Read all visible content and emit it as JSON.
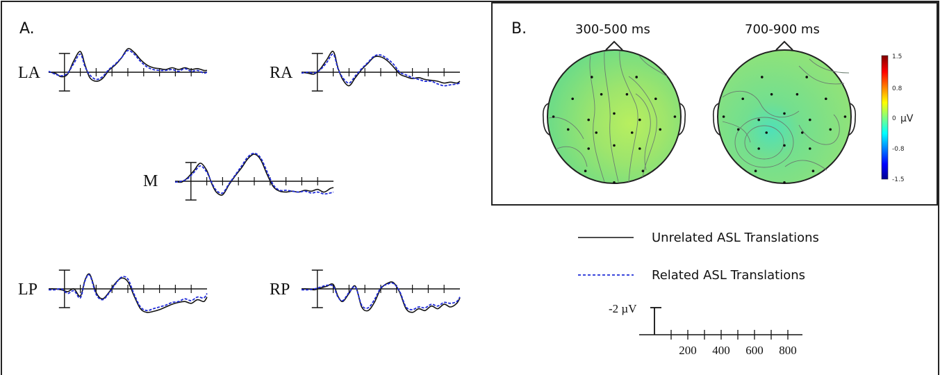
{
  "panels": {
    "a_label": "A.",
    "b_label": "B."
  },
  "colors": {
    "unrelated": "#111111",
    "related": "#1f2bd8",
    "scalp_fill": "#86e07a",
    "frame": "#222222"
  },
  "chart_data": [
    {
      "type": "line",
      "title": "",
      "sites": [
        "LA",
        "RA",
        "M",
        "LP",
        "RP"
      ],
      "legend": [
        {
          "name": "Unrelated ASL Translations",
          "style": "solid",
          "color": "#111111"
        },
        {
          "name": "Related ASL Translations",
          "style": "dashed",
          "color": "#1f2bd8"
        }
      ],
      "scale_bar": {
        "amplitude_label": "-2 µV",
        "amplitude": -2,
        "time_ticks": [
          200,
          400,
          600,
          800
        ],
        "time_tick_step_ms": 100,
        "time_range_ms": [
          -100,
          900
        ]
      },
      "y_polarity": "negative up",
      "series": [
        {
          "site": "LA",
          "unrelated": [
            [
              -100,
              0
            ],
            [
              -60,
              0.1
            ],
            [
              -20,
              0.5
            ],
            [
              20,
              0.2
            ],
            [
              60,
              -1.3
            ],
            [
              100,
              -2.3
            ],
            [
              130,
              -0.8
            ],
            [
              160,
              0.6
            ],
            [
              200,
              1.0
            ],
            [
              240,
              0.7
            ],
            [
              280,
              -0.2
            ],
            [
              320,
              -0.8
            ],
            [
              360,
              -1.6
            ],
            [
              400,
              -2.6
            ],
            [
              440,
              -2.2
            ],
            [
              480,
              -1.4
            ],
            [
              520,
              -0.8
            ],
            [
              560,
              -0.5
            ],
            [
              600,
              -0.4
            ],
            [
              640,
              -0.3
            ],
            [
              680,
              -0.5
            ],
            [
              720,
              -0.3
            ],
            [
              760,
              -0.5
            ],
            [
              800,
              -0.3
            ],
            [
              840,
              -0.4
            ],
            [
              880,
              -0.2
            ],
            [
              900,
              -0.2
            ]
          ],
          "related": [
            [
              -100,
              -0.1
            ],
            [
              -60,
              0.2
            ],
            [
              -20,
              0.4
            ],
            [
              20,
              0.1
            ],
            [
              60,
              -1.0
            ],
            [
              100,
              -2.0
            ],
            [
              130,
              -0.6
            ],
            [
              160,
              0.3
            ],
            [
              200,
              0.8
            ],
            [
              240,
              0.5
            ],
            [
              280,
              -0.3
            ],
            [
              320,
              -0.9
            ],
            [
              360,
              -1.6
            ],
            [
              400,
              -2.4
            ],
            [
              440,
              -2.0
            ],
            [
              480,
              -1.2
            ],
            [
              520,
              -0.6
            ],
            [
              560,
              -0.3
            ],
            [
              600,
              -0.2
            ],
            [
              640,
              -0.2
            ],
            [
              680,
              -0.3
            ],
            [
              720,
              -0.1
            ],
            [
              760,
              -0.4
            ],
            [
              800,
              -0.1
            ],
            [
              840,
              -0.2
            ],
            [
              880,
              0.1
            ],
            [
              900,
              0.0
            ]
          ]
        },
        {
          "site": "RA",
          "unrelated": [
            [
              -100,
              0
            ],
            [
              -60,
              0.1
            ],
            [
              -20,
              0.2
            ],
            [
              20,
              -0.4
            ],
            [
              60,
              -1.4
            ],
            [
              100,
              -2.3
            ],
            [
              130,
              -0.5
            ],
            [
              160,
              0.8
            ],
            [
              200,
              1.5
            ],
            [
              240,
              0.6
            ],
            [
              280,
              -0.3
            ],
            [
              320,
              -1.0
            ],
            [
              360,
              -1.7
            ],
            [
              400,
              -1.7
            ],
            [
              440,
              -1.3
            ],
            [
              480,
              -0.6
            ],
            [
              520,
              0.2
            ],
            [
              560,
              0.5
            ],
            [
              600,
              0.7
            ],
            [
              640,
              0.6
            ],
            [
              680,
              0.8
            ],
            [
              720,
              0.9
            ],
            [
              760,
              1.0
            ],
            [
              800,
              1.2
            ],
            [
              840,
              1.1
            ],
            [
              880,
              1.2
            ],
            [
              900,
              1.0
            ]
          ],
          "related": [
            [
              -100,
              0.1
            ],
            [
              -60,
              0.0
            ],
            [
              -20,
              0.1
            ],
            [
              20,
              -0.3
            ],
            [
              60,
              -1.1
            ],
            [
              100,
              -2.0
            ],
            [
              130,
              -0.4
            ],
            [
              160,
              0.6
            ],
            [
              200,
              1.2
            ],
            [
              240,
              0.4
            ],
            [
              280,
              -0.4
            ],
            [
              320,
              -1.1
            ],
            [
              360,
              -1.8
            ],
            [
              400,
              -1.9
            ],
            [
              440,
              -1.5
            ],
            [
              480,
              -0.9
            ],
            [
              520,
              0.0
            ],
            [
              560,
              0.3
            ],
            [
              600,
              0.6
            ],
            [
              640,
              0.8
            ],
            [
              680,
              1.0
            ],
            [
              720,
              1.0
            ],
            [
              760,
              1.3
            ],
            [
              800,
              1.5
            ],
            [
              840,
              1.4
            ],
            [
              880,
              1.3
            ],
            [
              900,
              1.2
            ]
          ]
        },
        {
          "site": "M",
          "unrelated": [
            [
              -100,
              0
            ],
            [
              -60,
              0.1
            ],
            [
              -20,
              -0.4
            ],
            [
              20,
              -1.2
            ],
            [
              60,
              -2.0
            ],
            [
              100,
              -1.2
            ],
            [
              130,
              0.2
            ],
            [
              160,
              1.2
            ],
            [
              200,
              1.5
            ],
            [
              240,
              0.4
            ],
            [
              280,
              -0.6
            ],
            [
              320,
              -1.5
            ],
            [
              360,
              -2.5
            ],
            [
              400,
              -3.0
            ],
            [
              440,
              -2.4
            ],
            [
              480,
              -0.8
            ],
            [
              520,
              0.6
            ],
            [
              560,
              1.1
            ],
            [
              600,
              1.2
            ],
            [
              640,
              1.1
            ],
            [
              680,
              1.2
            ],
            [
              720,
              1.0
            ],
            [
              760,
              1.1
            ],
            [
              800,
              0.9
            ],
            [
              840,
              1.2
            ],
            [
              880,
              0.8
            ],
            [
              900,
              0.7
            ]
          ],
          "related": [
            [
              -100,
              0.1
            ],
            [
              -60,
              0.0
            ],
            [
              -20,
              -0.3
            ],
            [
              20,
              -1.0
            ],
            [
              60,
              -1.7
            ],
            [
              100,
              -1.0
            ],
            [
              130,
              0.1
            ],
            [
              160,
              1.0
            ],
            [
              200,
              1.3
            ],
            [
              240,
              0.3
            ],
            [
              280,
              -0.7
            ],
            [
              320,
              -1.7
            ],
            [
              360,
              -2.7
            ],
            [
              400,
              -3.1
            ],
            [
              440,
              -2.6
            ],
            [
              480,
              -1.1
            ],
            [
              520,
              0.4
            ],
            [
              560,
              1.0
            ],
            [
              600,
              1.0
            ],
            [
              640,
              1.1
            ],
            [
              680,
              1.2
            ],
            [
              720,
              1.1
            ],
            [
              760,
              1.3
            ],
            [
              800,
              1.2
            ],
            [
              840,
              1.4
            ],
            [
              880,
              1.3
            ],
            [
              900,
              1.2
            ]
          ]
        },
        {
          "site": "LP",
          "unrelated": [
            [
              -100,
              0
            ],
            [
              -60,
              0.0
            ],
            [
              -20,
              0.1
            ],
            [
              20,
              0.3
            ],
            [
              60,
              0.0
            ],
            [
              100,
              0.8
            ],
            [
              130,
              -1.0
            ],
            [
              160,
              -1.6
            ],
            [
              200,
              0.4
            ],
            [
              240,
              1.1
            ],
            [
              280,
              0.4
            ],
            [
              320,
              -0.6
            ],
            [
              360,
              -1.2
            ],
            [
              400,
              -0.8
            ],
            [
              440,
              0.8
            ],
            [
              480,
              2.2
            ],
            [
              520,
              2.6
            ],
            [
              560,
              2.5
            ],
            [
              600,
              2.3
            ],
            [
              640,
              2.0
            ],
            [
              680,
              1.7
            ],
            [
              720,
              1.5
            ],
            [
              760,
              1.4
            ],
            [
              800,
              1.6
            ],
            [
              840,
              1.2
            ],
            [
              880,
              1.4
            ],
            [
              900,
              0.9
            ]
          ],
          "related": [
            [
              -100,
              0.1
            ],
            [
              -60,
              0.1
            ],
            [
              -20,
              0.0
            ],
            [
              20,
              0.5
            ],
            [
              60,
              0.2
            ],
            [
              100,
              1.0
            ],
            [
              130,
              -0.9
            ],
            [
              160,
              -1.5
            ],
            [
              200,
              0.6
            ],
            [
              240,
              1.2
            ],
            [
              280,
              0.5
            ],
            [
              320,
              -0.5
            ],
            [
              360,
              -1.3
            ],
            [
              400,
              -1.1
            ],
            [
              440,
              0.6
            ],
            [
              480,
              2.0
            ],
            [
              520,
              2.4
            ],
            [
              560,
              2.2
            ],
            [
              600,
              2.0
            ],
            [
              640,
              1.8
            ],
            [
              680,
              1.5
            ],
            [
              720,
              1.4
            ],
            [
              760,
              1.1
            ],
            [
              800,
              1.3
            ],
            [
              840,
              0.9
            ],
            [
              880,
              1.0
            ],
            [
              900,
              0.5
            ]
          ]
        },
        {
          "site": "RP",
          "unrelated": [
            [
              -100,
              0
            ],
            [
              -60,
              0.0
            ],
            [
              -20,
              0.1
            ],
            [
              20,
              -0.1
            ],
            [
              60,
              -0.3
            ],
            [
              100,
              -0.5
            ],
            [
              130,
              0.8
            ],
            [
              160,
              1.4
            ],
            [
              200,
              0.5
            ],
            [
              240,
              -0.3
            ],
            [
              280,
              2.0
            ],
            [
              320,
              2.4
            ],
            [
              360,
              1.5
            ],
            [
              400,
              0.0
            ],
            [
              440,
              -0.6
            ],
            [
              480,
              -0.7
            ],
            [
              520,
              0.4
            ],
            [
              560,
              2.2
            ],
            [
              600,
              2.6
            ],
            [
              640,
              2.2
            ],
            [
              680,
              2.4
            ],
            [
              720,
              1.9
            ],
            [
              760,
              2.2
            ],
            [
              800,
              1.7
            ],
            [
              840,
              2.0
            ],
            [
              880,
              1.6
            ],
            [
              900,
              1.0
            ]
          ],
          "related": [
            [
              -100,
              0.1
            ],
            [
              -60,
              0.1
            ],
            [
              -20,
              0.0
            ],
            [
              20,
              -0.2
            ],
            [
              60,
              -0.4
            ],
            [
              100,
              -0.3
            ],
            [
              130,
              0.9
            ],
            [
              160,
              1.3
            ],
            [
              200,
              0.4
            ],
            [
              240,
              -0.2
            ],
            [
              280,
              1.8
            ],
            [
              320,
              2.1
            ],
            [
              360,
              1.2
            ],
            [
              400,
              -0.1
            ],
            [
              440,
              -0.5
            ],
            [
              480,
              -0.6
            ],
            [
              520,
              0.3
            ],
            [
              560,
              2.0
            ],
            [
              600,
              2.3
            ],
            [
              640,
              2.0
            ],
            [
              680,
              2.1
            ],
            [
              720,
              1.7
            ],
            [
              760,
              1.9
            ],
            [
              800,
              1.5
            ],
            [
              840,
              1.6
            ],
            [
              880,
              1.4
            ],
            [
              900,
              0.9
            ]
          ]
        }
      ]
    },
    {
      "type": "heatmap",
      "title": "",
      "maps": [
        {
          "label": "300-500 ms",
          "mean_value": 0.1
        },
        {
          "label": "700-900 ms",
          "mean_value": 0.0
        }
      ],
      "colorbar": {
        "unit": "µV",
        "ticks": [
          "1.5",
          "0.8",
          "0",
          "-0.8",
          "-1.5"
        ],
        "range": [
          -1.5,
          1.5
        ],
        "colormap": "jet"
      }
    }
  ]
}
